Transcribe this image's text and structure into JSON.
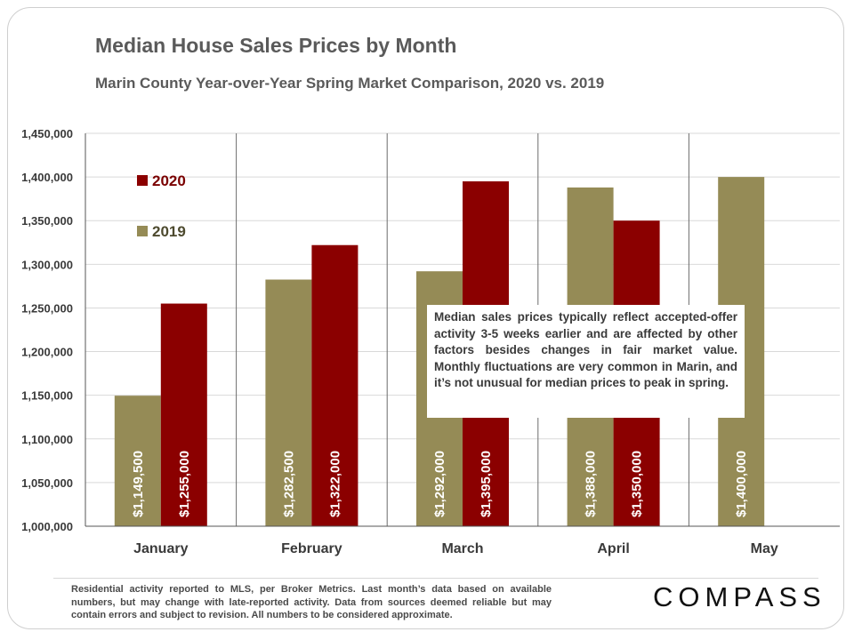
{
  "header": {
    "title": "Median House Sales Prices by Month",
    "subtitle": "Marin County Year-over-Year Spring Market Comparison, 2020 vs. 2019"
  },
  "chart_data": {
    "type": "bar",
    "title": "Median House Sales Prices by Month",
    "subtitle": "Marin County Year-over-Year Spring Market Comparison, 2020 vs. 2019",
    "categories": [
      "January",
      "February",
      "March",
      "April",
      "May"
    ],
    "series": [
      {
        "name": "2019",
        "color": "#958b56",
        "values": [
          1149500,
          1282500,
          1292000,
          1388000,
          1400000
        ],
        "labels": [
          "$1,149,500",
          "$1,282,500",
          "$1,292,000",
          "$1,388,000",
          "$1,400,000"
        ]
      },
      {
        "name": "2020",
        "color": "#8b0000",
        "values": [
          1255000,
          1322000,
          1395000,
          1350000,
          null
        ],
        "labels": [
          "$1,255,000",
          "$1,322,000",
          "$1,395,000",
          "$1,350,000",
          ""
        ]
      }
    ],
    "ylim": [
      1000000,
      1450000
    ],
    "yticks": [
      1000000,
      1050000,
      1100000,
      1150000,
      1200000,
      1250000,
      1300000,
      1350000,
      1400000,
      1450000
    ],
    "ytick_labels": [
      "1,000,000",
      "1,050,000",
      "1,100,000",
      "1,150,000",
      "1,200,000",
      "1,250,000",
      "1,300,000",
      "1,350,000",
      "1,400,000",
      "1,450,000"
    ],
    "grid": true,
    "legend": {
      "placement": "top-left",
      "order": [
        "2020",
        "2019"
      ]
    },
    "data_label_orientation": "vertical"
  },
  "annotation": {
    "text": "Median sales prices typically reflect accepted-offer activity 3-5 weeks earlier and are affected by other factors besides changes in fair market value. Monthly fluctuations are very common in Marin, and it’s not unusual for median prices to peak in spring."
  },
  "footer": {
    "note": "Residential activity reported to MLS, per Broker Metrics. Last month’s data based on available numbers, but may change with late-reported activity. Data from sources deemed reliable but may contain errors and subject to revision. All numbers to be considered approximate.",
    "brand": "COMPASS"
  }
}
